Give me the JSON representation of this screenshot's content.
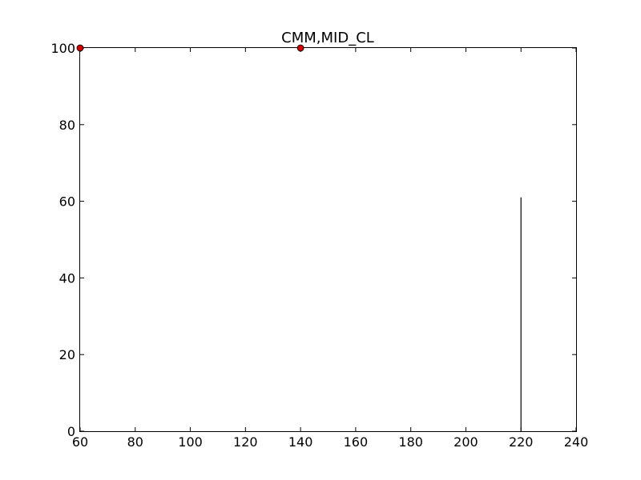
{
  "chart_data": {
    "type": "scatter",
    "title": "CMM,MID_CL",
    "xlabel": "",
    "ylabel": "",
    "xlim": [
      60,
      240
    ],
    "ylim": [
      0,
      100
    ],
    "xticks": [
      60,
      80,
      100,
      120,
      140,
      160,
      180,
      200,
      220,
      240
    ],
    "yticks": [
      0,
      20,
      40,
      60,
      80,
      100
    ],
    "grid": false,
    "series": [
      {
        "type": "scatter",
        "color": "#cc0000",
        "points": [
          {
            "x": 60,
            "y": 100
          },
          {
            "x": 140,
            "y": 100
          }
        ]
      },
      {
        "type": "vline",
        "color": "#000000",
        "x": 220,
        "y_from": 0,
        "y_to": 61
      }
    ]
  }
}
